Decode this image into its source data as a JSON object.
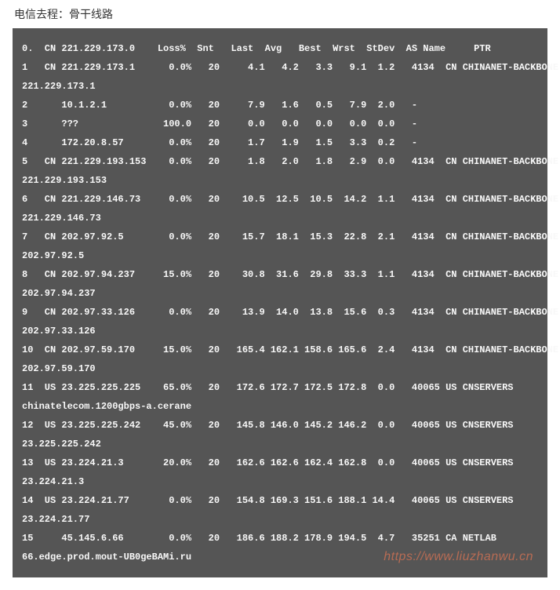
{
  "header": {
    "title": "电信去程：骨干线路"
  },
  "terminal": {
    "background_color": "#555555",
    "text_color": "#f8f8f8",
    "header_line": "0.  CN 221.229.173.0    Loss%  Snt   Last  Avg   Best  Wrst  StDev  AS Name     PTR",
    "rows": [
      {
        "hop": "1",
        "cc": "CN",
        "ip": "221.229.173.1",
        "loss": "0.0%",
        "snt": "20",
        "last": "4.1",
        "avg": "4.2",
        "best": "3.3",
        "wrst": "9.1",
        "stdev": "1.2",
        "asn": "4134",
        "asname": "CN CHINANET-BACKBONE",
        "ptr": "221.229.173.1"
      },
      {
        "hop": "2",
        "cc": "",
        "ip": "10.1.2.1",
        "loss": "0.0%",
        "snt": "20",
        "last": "7.9",
        "avg": "1.6",
        "best": "0.5",
        "wrst": "7.9",
        "stdev": "2.0",
        "asn": "-",
        "asname": "",
        "ptr": ""
      },
      {
        "hop": "3",
        "cc": "",
        "ip": "???",
        "loss": "100.0",
        "snt": "20",
        "last": "0.0",
        "avg": "0.0",
        "best": "0.0",
        "wrst": "0.0",
        "stdev": "0.0",
        "asn": "-",
        "asname": "",
        "ptr": ""
      },
      {
        "hop": "4",
        "cc": "",
        "ip": "172.20.8.57",
        "loss": "0.0%",
        "snt": "20",
        "last": "1.7",
        "avg": "1.9",
        "best": "1.5",
        "wrst": "3.3",
        "stdev": "0.2",
        "asn": "-",
        "asname": "",
        "ptr": ""
      },
      {
        "hop": "5",
        "cc": "CN",
        "ip": "221.229.193.153",
        "loss": "0.0%",
        "snt": "20",
        "last": "1.8",
        "avg": "2.0",
        "best": "1.8",
        "wrst": "2.9",
        "stdev": "0.0",
        "asn": "4134",
        "asname": "CN CHINANET-BACKBONE",
        "ptr": "221.229.193.153"
      },
      {
        "hop": "6",
        "cc": "CN",
        "ip": "221.229.146.73",
        "loss": "0.0%",
        "snt": "20",
        "last": "10.5",
        "avg": "12.5",
        "best": "10.5",
        "wrst": "14.2",
        "stdev": "1.1",
        "asn": "4134",
        "asname": "CN CHINANET-BACKBONE",
        "ptr": "221.229.146.73"
      },
      {
        "hop": "7",
        "cc": "CN",
        "ip": "202.97.92.5",
        "loss": "0.0%",
        "snt": "20",
        "last": "15.7",
        "avg": "18.1",
        "best": "15.3",
        "wrst": "22.8",
        "stdev": "2.1",
        "asn": "4134",
        "asname": "CN CHINANET-BACKBONE",
        "ptr": "202.97.92.5"
      },
      {
        "hop": "8",
        "cc": "CN",
        "ip": "202.97.94.237",
        "loss": "15.0%",
        "snt": "20",
        "last": "30.8",
        "avg": "31.6",
        "best": "29.8",
        "wrst": "33.3",
        "stdev": "1.1",
        "asn": "4134",
        "asname": "CN CHINANET-BACKBONE",
        "ptr": "202.97.94.237"
      },
      {
        "hop": "9",
        "cc": "CN",
        "ip": "202.97.33.126",
        "loss": "0.0%",
        "snt": "20",
        "last": "13.9",
        "avg": "14.0",
        "best": "13.8",
        "wrst": "15.6",
        "stdev": "0.3",
        "asn": "4134",
        "asname": "CN CHINANET-BACKBONE",
        "ptr": "202.97.33.126"
      },
      {
        "hop": "10",
        "cc": "CN",
        "ip": "202.97.59.170",
        "loss": "15.0%",
        "snt": "20",
        "last": "165.4",
        "avg": "162.1",
        "best": "158.6",
        "wrst": "165.6",
        "stdev": "2.4",
        "asn": "4134",
        "asname": "CN CHINANET-BACKBONE",
        "ptr": "202.97.59.170"
      },
      {
        "hop": "11",
        "cc": "US",
        "ip": "23.225.225.225",
        "loss": "65.0%",
        "snt": "20",
        "last": "172.6",
        "avg": "172.7",
        "best": "172.5",
        "wrst": "172.8",
        "stdev": "0.0",
        "asn": "40065",
        "asname": "US CNSERVERS",
        "ptr": "chinatelecom.1200gbps-a.cerane"
      },
      {
        "hop": "12",
        "cc": "US",
        "ip": "23.225.225.242",
        "loss": "45.0%",
        "snt": "20",
        "last": "145.8",
        "avg": "146.0",
        "best": "145.2",
        "wrst": "146.2",
        "stdev": "0.0",
        "asn": "40065",
        "asname": "US CNSERVERS",
        "ptr": "23.225.225.242"
      },
      {
        "hop": "13",
        "cc": "US",
        "ip": "23.224.21.3",
        "loss": "20.0%",
        "snt": "20",
        "last": "162.6",
        "avg": "162.6",
        "best": "162.4",
        "wrst": "162.8",
        "stdev": "0.0",
        "asn": "40065",
        "asname": "US CNSERVERS",
        "ptr": "23.224.21.3"
      },
      {
        "hop": "14",
        "cc": "US",
        "ip": "23.224.21.77",
        "loss": "0.0%",
        "snt": "20",
        "last": "154.8",
        "avg": "169.3",
        "best": "151.6",
        "wrst": "188.1",
        "stdev": "14.4",
        "asn": "40065",
        "asname": "US CNSERVERS",
        "ptr": "23.224.21.77"
      },
      {
        "hop": "15",
        "cc": "",
        "ip": "45.145.6.66",
        "loss": "0.0%",
        "snt": "20",
        "last": "186.6",
        "avg": "188.2",
        "best": "178.9",
        "wrst": "194.5",
        "stdev": "4.7",
        "asn": "35251",
        "asname": "CA NETLAB",
        "ptr": "66.edge.prod.mout-UB0geBAMi.ru"
      }
    ]
  },
  "watermark": {
    "text": "https://www.liuzhanwu.cn",
    "color": "#c97054"
  }
}
